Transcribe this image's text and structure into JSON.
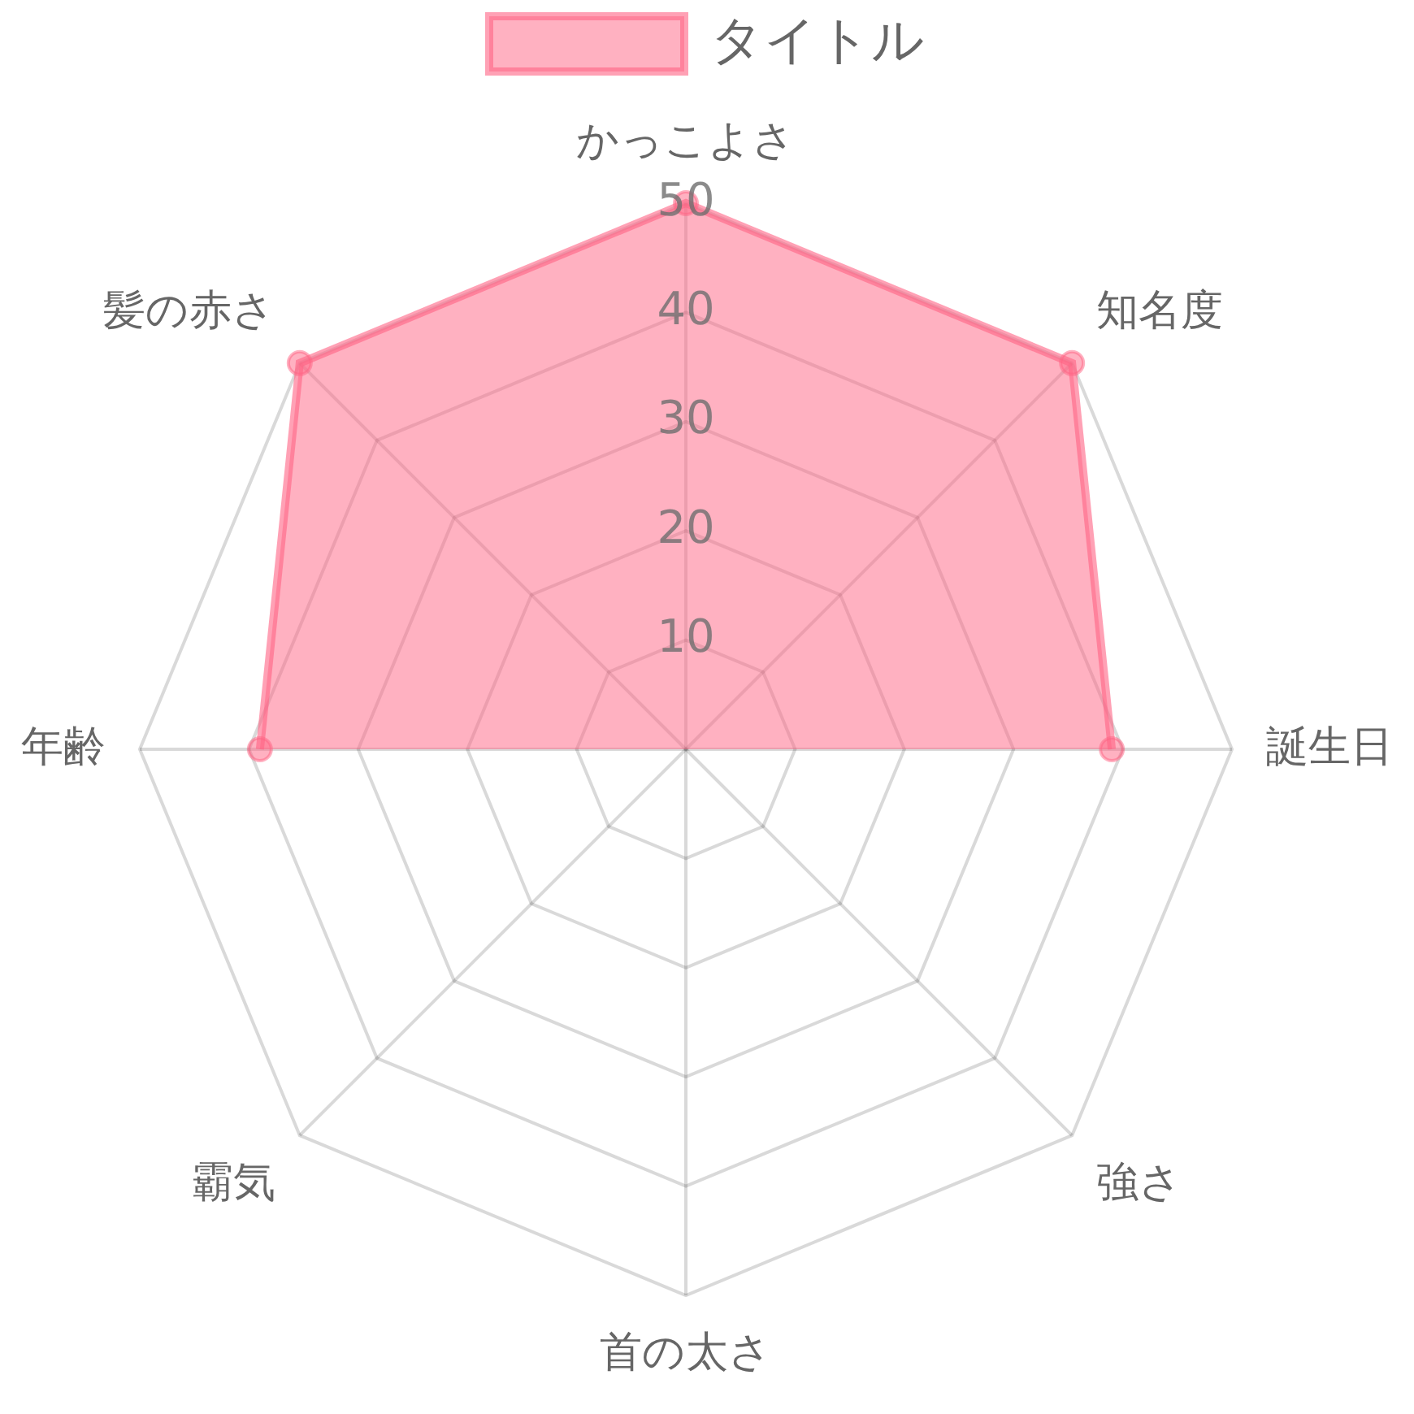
{
  "chart_data": {
    "type": "radar",
    "categories": [
      "かっこよさ",
      "知名度",
      "誕生日",
      "強さ",
      "首の太さ",
      "霸気",
      "年齢",
      "髪の赤さ"
    ],
    "series": [
      {
        "name": "タイトル",
        "color": "#ff6384",
        "values": [
          50,
          50,
          39,
          null,
          null,
          null,
          39,
          50
        ]
      }
    ],
    "ylim": [
      0,
      50
    ],
    "yticks": [
      10,
      20,
      30,
      40,
      50
    ],
    "grid": true,
    "legend": "top",
    "marker": "circle"
  }
}
